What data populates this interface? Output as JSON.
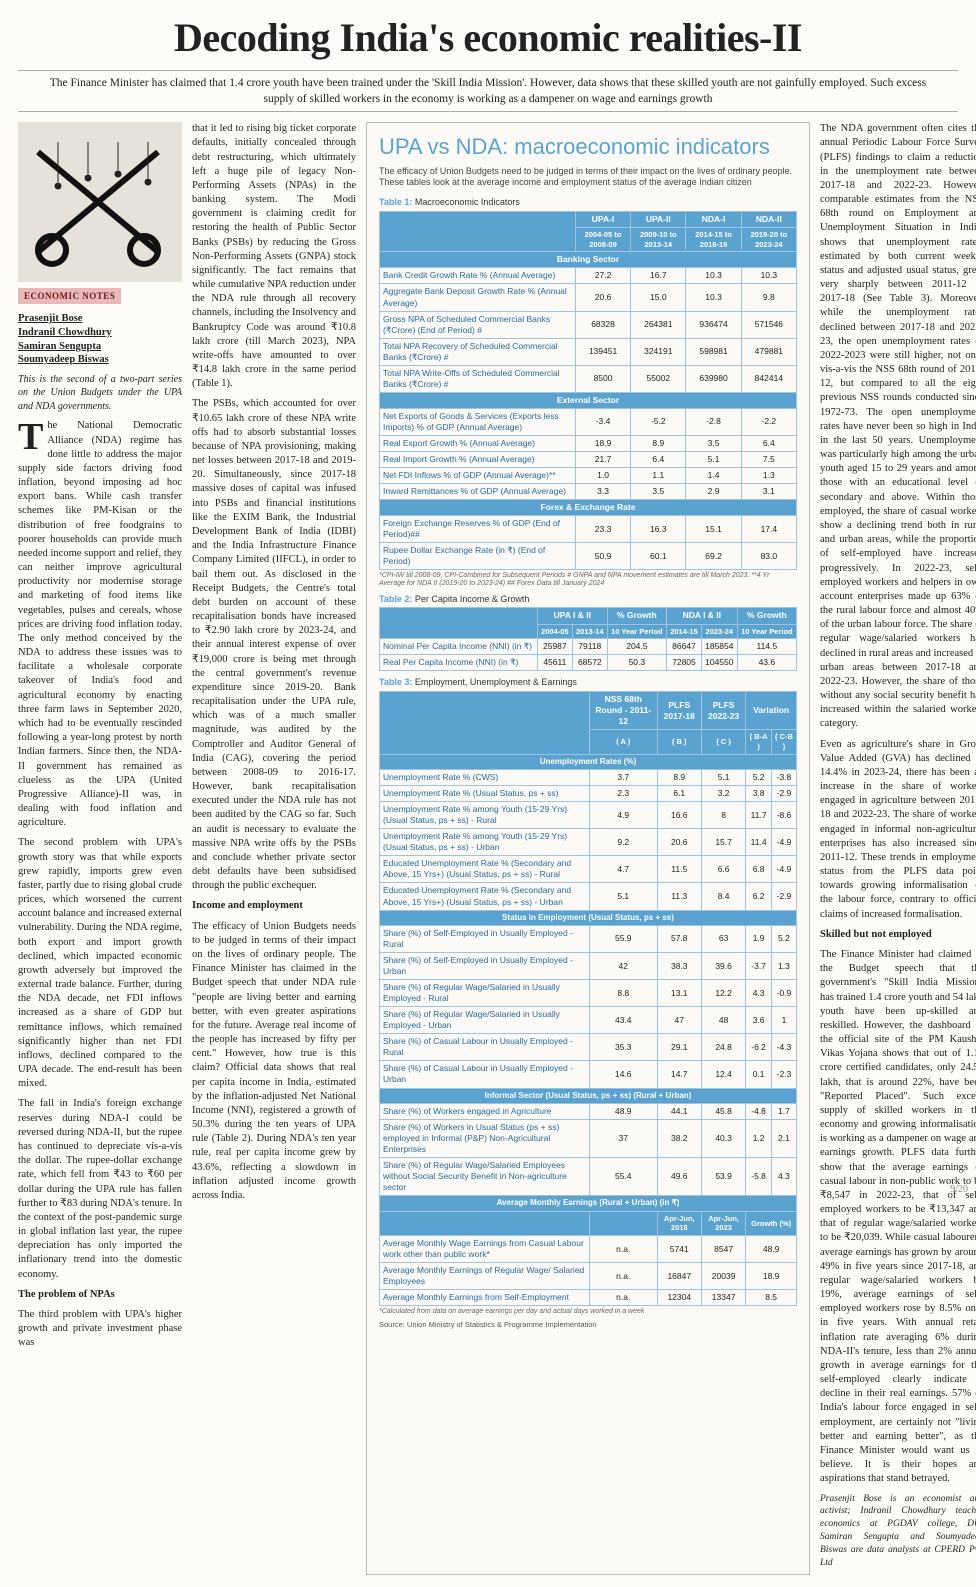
{
  "headline": "Decoding India's economic realities-II",
  "subhead": "The Finance Minister has claimed that 1.4 crore youth have been trained under the 'Skill India Mission'. However, data shows that these skilled youth are not gainfully employed. Such excess supply of skilled workers in the economy is working as a dampener on wage and earnings growth",
  "tag": "ECONOMIC NOTES",
  "authors": [
    "Prasenjit Bose",
    "Indranil Chowdhury",
    "Samiran Sengupta",
    "Soumyadeep Biswas"
  ],
  "lede_note": "This is the second of a two-part series on the Union Budgets under the UPA and NDA governments.",
  "col1_paras": [
    "The National Democratic Alliance (NDA) regime has done little to address the major supply side factors driving food inflation, beyond imposing ad hoc export bans. While cash transfer schemes like PM-Kisan or the distribution of free foodgrains to poorer households can provide much needed income support and relief, they can neither improve agricultural productivity nor modernise storage and marketing of food items like vegetables, pulses and cereals, whose prices are driving food inflation today. The only method conceived by the NDA to address these issues was to facilitate a wholesale corporate takeover of India's food and agricultural economy by enacting three farm laws in September 2020, which had to be eventually rescinded following a year-long protest by north Indian farmers. Since then, the NDA-II government has remained as clueless as the UPA (United Progressive Alliance)-II was, in dealing with food inflation and agriculture.",
    "The second problem with UPA's growth story was that while exports grew rapidly, imports grew even faster, partly due to rising global crude prices, which worsened the current account balance and increased external vulnerability. During the NDA regime, both export and import growth declined, which impacted economic growth adversely but improved the external trade balance. Further, during the NDA decade, net FDI inflows increased as a share of GDP but remittance inflows, which remained significantly higher than net FDI inflows, declined compared to the UPA decade. The end-result has been mixed.",
    "The fall in India's foreign exchange reserves during NDA-I could be reversed during NDA-II, but the rupee has continued to depreciate vis-a-vis the dollar. The rupee-dollar exchange rate, which fell from ₹43 to ₹60 per dollar during the UPA rule has fallen further to ₹83 during NDA's tenure. In the context of the post-pandemic surge in global inflation last year, the rupee depreciation has only imported the inflationary trend into the domestic economy."
  ],
  "col1_h": "The problem of NPAs",
  "col1_tail": "The third problem with UPA's higher growth and private investment phase was",
  "col2_paras": [
    "that it led to rising big ticket corporate defaults, initially concealed through debt restructuring, which ultimately left a huge pile of legacy Non-Performing Assets (NPAs) in the banking system. The Modi government is claiming credit for restoring the health of Public Sector Banks (PSBs) by reducing the Gross Non-Performing Assets (GNPA) stock significantly. The fact remains that while cumulative NPA reduction under the NDA rule through all recovery channels, including the Insolvency and Bankruptcy Code was around ₹10.8 lakh crore (till March 2023), NPA write-offs have amounted to over ₹14.8 lakh crore in the same period (Table 1).",
    "The PSBs, which accounted for over ₹10.65 lakh crore of these NPA write offs had to absorb substantial losses because of NPA provisioning, making net losses between 2017-18 and 2019-20. Simultaneously, since 2017-18 massive doses of capital was infused into PSBs and financial institutions like the EXIM Bank, the Industrial Development Bank of India (IDBI) and the India Infrastructure Finance Company Limited (IIFCL), in order to bail them out. As disclosed in the Receipt Budgets, the Centre's total debt burden on account of these recapitalisation bonds have increased to ₹2.90 lakh crore by 2023-24, and their annual interest expense of over ₹19,000 crore is being met through the central government's revenue expenditure since 2019-20. Bank recapitalisation under the UPA rule, which was of a much smaller magnitude, was audited by the Comptroller and Auditor General of India (CAG), covering the period between 2008-09 to 2016-17. However, bank recapitalisation executed under the NDA rule has not been audited by the CAG so far. Such an audit is necessary to evaluate the massive NPA write offs by the PSBs and conclude whether private sector debt defaults have been subsidised through the public exchequer."
  ],
  "col2_h": "Income and employment",
  "col2_tail": "The efficacy of Union Budgets needs to be judged in terms of their impact on the lives of ordinary people. The Finance Minister has claimed in the Budget speech that under NDA rule \"people are living better and earning better, with even greater aspirations for the future. Average real income of the people has increased by fifty per cent.\" However, how true is this claim? Official data shows that real per capita income in India, estimated by the inflation-adjusted Net National Income (NNI), registered a growth of 50.3% during the ten years of UPA rule (Table 2). During NDA's ten year rule, real per capita income grew by 43.6%, reflecting a slowdown in inflation adjusted income growth across India.",
  "colR_paras": [
    "The NDA government often cites the annual Periodic Labour Force Survey (PLFS) findings to claim a reduction in the unemployment rate between 2017-18 and 2022-23. However, comparable estimates from the NSS 68th round on Employment and Unemployment Situation in India, shows that unemployment rates, estimated by both current weekly status and adjusted usual status, grew very sharply between 2011-12 to 2017-18 (See Table 3). Moreover, while the unemployment rates declined between 2017-18 and 2022-23, the open unemployment rates of 2022-2023 were still higher, not only vis-a-vis the NSS 68th round of 2011-12, but compared to all the eight previous NSS rounds conducted since 1972-73. The open unemployment rates have never been so high in India in the last 50 years. Unemployment was particularly high among the urban youth aged 15 to 29 years and among those with an educational level of secondary and above. Within those employed, the share of casual workers show a declining trend both in rural and urban areas, while the proportion of self-employed have increased progressively. In 2022-23, self-employed workers and helpers in own account enterprises made up 63% of the rural labour force and almost 40% of the urban labour force. The share of regular wage/salaried workers has declined in rural areas and increased in urban areas between 2017-18 and 2022-23. However, the share of those without any social security benefit has increased within the salaried workers category.",
    "Even as agriculture's share in Gross Value Added (GVA) has declined to 14.4% in 2023-24, there has been an increase in the share of workers engaged in agriculture between 2017-18 and 2022-23. The share of workers engaged in informal non-agricultural enterprises has also increased since 2011-12. These trends in employment status from the PLFS data point towards growing informalisation of the labour force, contrary to official claims of increased formalisation."
  ],
  "colR_h": "Skilled but not employed",
  "colR_tail": "The Finance Minister had claimed in the Budget speech that the government's \"Skill India Mission\" has trained 1.4 crore youth and 54 lakh youth have been up-skilled and reskilled. However, the dashboard in the official site of the PM Kaushal Vikas Yojana shows that out of 1.10 crore certified candidates, only 24.51 lakh, that is around 22%, have been \"Reported Placed\". Such excess supply of skilled workers in the economy and growing informalisation is working as a dampener on wage and earnings growth. PLFS data further show that the average earnings of casual labour in non-public work to be ₹8,547 in 2022-23, that of self-employed workers to be ₹13,347 and that of regular wage/salaried workers to be ₹20,039. While casual labourers' average earnings has grown by around 49% in five years since 2017-18, and regular wage/salaried workers by 19%, average earnings of self-employed workers rose by 8.5% only in five years. With annual retail inflation rate averaging 6% during NDA-II's tenure, less than 2% annual growth in average earnings for the self-employed clearly indicate a decline in their real earnings. 57% of India's labour force engaged in self-employment, are certainly not \"living better and earning better\", as the Finance Minister would want us to believe. It is their hopes and aspirations that stand betrayed.",
  "sig": "Prasenjit Bose is an economist and activist; Indranil Chowdhury teaches economics at PGDAV college, DU; Samiran Sengupta and Soumyadeep Biswas are data analysts at CPERD Pvt. Ltd",
  "panel": {
    "title": "UPA vs NDA: macroeconomic indicators",
    "intro": "The efficacy of Union Budgets need to be judged in terms of their impact on the lives of ordinary people. These tables look at the average income and employment status of the average Indian citizen",
    "table1_label": "Table 1:",
    "table1_name": "Macroeconomic Indicators",
    "t1_head": [
      "UPA-I",
      "UPA-II",
      "NDA-I",
      "NDA-II"
    ],
    "t1_sub": [
      "2004-05 to 2008-09",
      "2009-10 to 2013-14",
      "2014-15 to 2018-19",
      "2019-20 to 2023-24"
    ],
    "t1_bands": [
      "Banking Sector",
      "External Sector",
      "Forex & Exchange Rate"
    ],
    "t1_rows_banking": [
      {
        "l": "Bank Credit Growth Rate % (Annual Average)",
        "v": [
          "27.2",
          "16.7",
          "10.3",
          "10.3"
        ]
      },
      {
        "l": "Aggregate Bank Deposit Growth Rate % (Annual Average)",
        "v": [
          "20.6",
          "15.0",
          "10.3",
          "9.8"
        ]
      },
      {
        "l": "Gross NPA of Scheduled Commercial Banks (₹Crore) (End of Period) #",
        "v": [
          "68328",
          "264381",
          "936474",
          "571546"
        ]
      },
      {
        "l": "Total NPA Recovery of Scheduled Commercial Banks (₹Crore) #",
        "v": [
          "139451",
          "324191",
          "598981",
          "479881"
        ]
      },
      {
        "l": "Total NPA Write-Offs of Scheduled Commercial Banks (₹Crore) #",
        "v": [
          "8500",
          "55002",
          "639980",
          "842414"
        ]
      }
    ],
    "t1_rows_external": [
      {
        "l": "Net Exports of Goods & Services (Exports less Imports) % of GDP (Annual Average)",
        "v": [
          "-3.4",
          "-5.2",
          "-2.8",
          "-2.2"
        ]
      },
      {
        "l": "Real Export Growth % (Annual Average)",
        "v": [
          "18.9",
          "8.9",
          "3.5",
          "6.4"
        ]
      },
      {
        "l": "Real Import Growth % (Annual Average)",
        "v": [
          "21.7",
          "6.4",
          "5.1",
          "7.5"
        ]
      },
      {
        "l": "Net FDI Inflows % of GDP (Annual Average)**",
        "v": [
          "1.0",
          "1.1",
          "1.4",
          "1.3"
        ]
      },
      {
        "l": "Inward Remittances % of GDP (Annual Average)",
        "v": [
          "3.3",
          "3.5",
          "2.9",
          "3.1"
        ]
      }
    ],
    "t1_rows_forex": [
      {
        "l": "Foreign Exchange Reserves % of GDP (End of Period)##",
        "v": [
          "23.3",
          "16.3",
          "15.1",
          "17.4"
        ]
      },
      {
        "l": "Rupee Dollar Exchange Rate (in ₹) (End of Period)",
        "v": [
          "50.9",
          "60.1",
          "69.2",
          "83.0"
        ]
      }
    ],
    "t1_foot": "*CPI-IW till 2008-09, CPI-Combined for Subsequent Periods  # GNPA and NPA movement estimates are till March 2023. **4 Yr Average for NDA II (2019-20 to 2023-24) ## Forex Data till January 2024",
    "table2_label": "Table 2:",
    "table2_name": "Per Capita Income & Growth",
    "t2_head_top": [
      "UPA I & II",
      "% Growth",
      "NDA I & II",
      "% Growth"
    ],
    "t2_head_sub": [
      "2004-05",
      "2013-14",
      "10 Year Period",
      "2014-15",
      "2023-24",
      "10 Year Period"
    ],
    "t2_rows": [
      {
        "l": "Nominal Per Capita Income (NNI) (in ₹)",
        "v": [
          "25987",
          "79118",
          "204.5",
          "86647",
          "185854",
          "114.5"
        ]
      },
      {
        "l": "Real Per Capita Income (NNI) (in ₹)",
        "v": [
          "45611",
          "68572",
          "50.3",
          "72805",
          "104550",
          "43.6"
        ]
      }
    ],
    "table3_label": "Table 3:",
    "table3_name": "Employment, Unemployment & Earnings",
    "t3_head_top": [
      "NSS 68th Round - 2011-12",
      "PLFS 2017-18",
      "PLFS 2022-23",
      "Variation",
      ""
    ],
    "t3_head_sub": [
      "( A )",
      "( B )",
      "( C )",
      "( B-A )",
      "( C-B )"
    ],
    "t3_band1": "Unemployment Rates (%)",
    "t3_rows1": [
      {
        "l": "Unemployment Rate % (CWS)",
        "v": [
          "3.7",
          "8.9",
          "5.1",
          "5.2",
          "-3.8"
        ]
      },
      {
        "l": "Unemployment Rate % (Usual Status, ps + ss)",
        "v": [
          "2.3",
          "6.1",
          "3.2",
          "3.8",
          "-2.9"
        ]
      },
      {
        "l": "Unemployment Rate % among Youth (15-29 Yrs) (Usual Status, ps + ss) - Rural",
        "v": [
          "4.9",
          "16.6",
          "8",
          "11.7",
          "-8.6"
        ]
      },
      {
        "l": "Unemployment Rate % among Youth (15-29 Yrs) (Usual Status, ps + ss) - Urban",
        "v": [
          "9.2",
          "20.6",
          "15.7",
          "11.4",
          "-4.9"
        ]
      },
      {
        "l": "Educated Unemployment Rate % (Secondary and Above, 15 Yrs+) (Usual Status, ps + ss) - Rural",
        "v": [
          "4.7",
          "11.5",
          "6.6",
          "6.8",
          "-4.9"
        ]
      },
      {
        "l": "Educated Unemployment Rate % (Secondary and Above, 15 Yrs+) (Usual Status, ps + ss) - Urban",
        "v": [
          "5.1",
          "11.3",
          "8.4",
          "6.2",
          "-2.9"
        ]
      }
    ],
    "t3_band2": "Status in Employment (Usual Status, ps + ss)",
    "t3_rows2": [
      {
        "l": "Share (%) of Self-Employed in Usually Employed - Rural",
        "v": [
          "55.9",
          "57.8",
          "63",
          "1.9",
          "5.2"
        ]
      },
      {
        "l": "Share (%) of Self-Employed in Usually Employed - Urban",
        "v": [
          "42",
          "38.3",
          "39.6",
          "-3.7",
          "1.3"
        ]
      },
      {
        "l": "Share (%) of Regular Wage/Salaried in Usually Employed - Rural",
        "v": [
          "8.8",
          "13.1",
          "12.2",
          "4.3",
          "-0.9"
        ]
      },
      {
        "l": "Share (%) of Regular Wage/Salaried in Usually Employed - Urban",
        "v": [
          "43.4",
          "47",
          "48",
          "3.6",
          "1"
        ]
      },
      {
        "l": "Share (%) of Casual Labour in Usually Employed - Rural",
        "v": [
          "35.3",
          "29.1",
          "24.8",
          "-6.2",
          "-4.3"
        ]
      },
      {
        "l": "Share (%) of Casual Labour in Usually Employed - Urban",
        "v": [
          "14.6",
          "14.7",
          "12.4",
          "0.1",
          "-2.3"
        ]
      }
    ],
    "t3_band3": "Informal Sector (Usual Status, ps + ss) (Rural + Urban)",
    "t3_rows3": [
      {
        "l": "Share (%) of Workers engaged in Agriculture",
        "v": [
          "48.9",
          "44.1",
          "45.8",
          "-4.8",
          "1.7"
        ]
      },
      {
        "l": "Share (%) of Workers in Usual Status (ps + ss) employed in Informal (P&P) Non-Agricultural Enterprises",
        "v": [
          "37",
          "38.2",
          "40.3",
          "1.2",
          "2.1"
        ]
      },
      {
        "l": "Share (%) of Regular Wage/Salaried Employees without Social Security Benefit in Non-agriculture sector",
        "v": [
          "55.4",
          "49.6",
          "53.9",
          "-5.8",
          "4.3"
        ]
      }
    ],
    "t3_band4": "Average Monthly Earnings (Rural + Urban) (in ₹)",
    "t3_head4": [
      "Apr-Jun, 2018",
      "Apr-Jun, 2023",
      "Growth (%)"
    ],
    "t3_rows4": [
      {
        "l": "Average Monthly Wage Earnings from Casual Labour work other than public work*",
        "v": [
          "n.a.",
          "5741",
          "8547",
          "48.9"
        ]
      },
      {
        "l": "Average Monthly Earnings of Regular Wage/ Salaried Employees",
        "v": [
          "n.a.",
          "16847",
          "20039",
          "18.9"
        ]
      },
      {
        "l": "Average Monthly Earnings from Self-Employment",
        "v": [
          "n.a.",
          "12304",
          "13347",
          "8.5"
        ]
      }
    ],
    "t3_foot": "*Calculated from data on average earnings per day and actual days worked in a week",
    "source": "Source: Union Ministry of Statistics & Programme Implementation"
  },
  "pagenum": "9/20"
}
